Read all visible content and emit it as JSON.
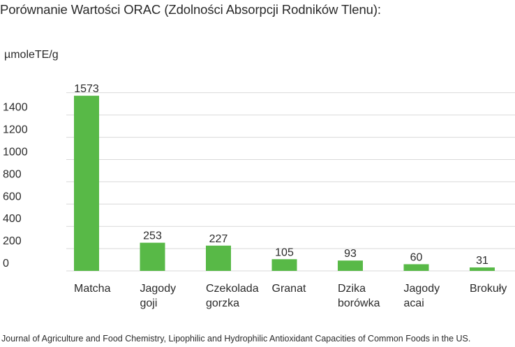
{
  "title": "Porównanie Wartości ORAC (Zdolności Absorpcji Rodników Tlenu):",
  "source": "Journal of Agriculture and Food Chemistry, Lipophilic and Hydrophilic Antioxidant Capacities of Common Foods in the US.",
  "chart_data": {
    "type": "bar",
    "title": "Porównanie Wartości ORAC (Zdolności Absorpcji Rodników Tlenu):",
    "ylabel": "µmoleTE/g",
    "xlabel": "",
    "categories": [
      [
        "Matcha"
      ],
      [
        "Jagody",
        "goji"
      ],
      [
        "Czekolada",
        "gorzka"
      ],
      [
        "Granat"
      ],
      [
        "Dzika",
        "borówka"
      ],
      [
        "Jagody",
        "acai"
      ],
      [
        "Brokuły"
      ]
    ],
    "values": [
      1573,
      253,
      227,
      105,
      93,
      60,
      31
    ],
    "yticks": [
      0,
      200,
      400,
      600,
      800,
      1000,
      1200,
      1400
    ],
    "ylim": [
      0,
      1600
    ],
    "grid": true,
    "bar_color": "#58b947",
    "grid_color": "#d9d9d9"
  }
}
